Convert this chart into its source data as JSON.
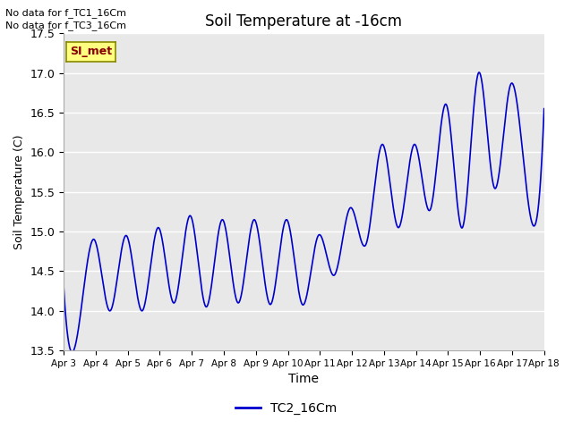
{
  "title": "Soil Temperature at -16cm",
  "xlabel": "Time",
  "ylabel": "Soil Temperature (C)",
  "ylim": [
    13.5,
    17.5
  ],
  "xlim": [
    0,
    15
  ],
  "background_color": "#e8e8e8",
  "plot_bg_color": "#e8e8e8",
  "line_color": "#0000cc",
  "legend_label": "TC2_16Cm",
  "no_data_texts": [
    "No data for f_TC1_16Cm",
    "No data for f_TC3_16Cm"
  ],
  "legend_box_facecolor": "#ffff80",
  "legend_box_edgecolor": "#888800",
  "legend_text_color": "#880000",
  "x_tick_labels": [
    "Apr 3",
    "Apr 4",
    "Apr 5",
    "Apr 6",
    "Apr 7",
    "Apr 8",
    "Apr 9",
    "Apr 10",
    "Apr 11",
    "Apr 12",
    "Apr 13",
    "Apr 14",
    "Apr 15",
    "Apr 16",
    "Apr 17",
    "Apr 18"
  ],
  "yticks": [
    13.5,
    14.0,
    14.5,
    15.0,
    15.5,
    16.0,
    16.5,
    17.0,
    17.5
  ],
  "key_points_x": [
    0.0,
    0.45,
    0.95,
    1.45,
    1.95,
    2.45,
    2.95,
    3.45,
    3.95,
    4.45,
    4.95,
    5.45,
    5.95,
    6.45,
    6.95,
    7.45,
    7.95,
    8.45,
    8.95,
    9.45,
    9.95,
    10.45,
    10.95,
    11.45,
    11.95,
    12.45,
    12.95,
    13.45,
    13.95,
    14.45,
    15.0
  ],
  "key_points_y": [
    14.3,
    13.75,
    14.9,
    14.0,
    14.95,
    14.0,
    15.05,
    14.1,
    15.2,
    14.05,
    15.15,
    14.1,
    15.15,
    14.08,
    15.15,
    14.08,
    14.95,
    14.45,
    15.3,
    14.85,
    16.1,
    15.05,
    16.1,
    15.28,
    16.6,
    15.05,
    17.0,
    15.55,
    16.85,
    15.55,
    16.55
  ]
}
